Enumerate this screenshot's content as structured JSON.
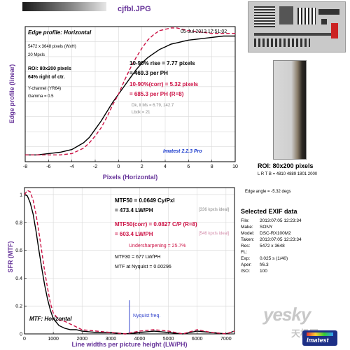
{
  "header": {
    "filename": "cjfbl.JPG"
  },
  "edge_info": {
    "title": "Edge profile: Horizontal",
    "date": "05-Jul-2013 17:51:02",
    "dims": "5472 x 3648 pixels (WxH)",
    "mpix": "20 Mpxls",
    "roi": "ROI: 80x200 pixels",
    "roi_pos": "64% right of ctr.",
    "channel": "Y-channel (YR64)",
    "gamma": "Gamma = 0.5",
    "rise_1": "10-90% rise = 7.77 pixels",
    "rise_2": "= 469.3 per PH",
    "corr_1": "10-90%(corr) = 5.32 pixels",
    "corr_2": "= 685.3 per PH  (R=8)",
    "dk": "Dk, lt Ms = 6.79, 142.7",
    "lbdk": "Lbdk = 21",
    "brand": "Imatest 2.2.3 Pro"
  },
  "mtf_info": {
    "mtf50_1": "MTF50 = 0.0649 Cy/Pxl",
    "mtf50_2": "= 473.4 LW/PH",
    "ideal_1": "[336 kpxls ideal]",
    "mtf50c_1": "MTF50(corr) = 0.0827  C/P  (R=8)",
    "mtf50c_2": "= 603.4 LW/PH",
    "ideal_2": "[546 kpxls ideal]",
    "under": "Undersharpening = 25.7%",
    "mtf30": "MTF30 = 677 LW/PH",
    "nyq": "MTF at Nyquist = 0.00296",
    "nyq_label": "Nyquist freq.",
    "title": "MTF: Horizontal"
  },
  "roi_panel": {
    "label": "ROI: 80x200 pixels",
    "ltrb": "L R T B = 4810 4889  1801 2000",
    "edge_angle": "Edge angle = -5.32 degs"
  },
  "exif": {
    "title": "Selected EXIF data",
    "rows": [
      {
        "k": "File:",
        "v": "2013:07:05 12:23:34"
      },
      {
        "k": "Make:",
        "v": "SONY"
      },
      {
        "k": "Model:",
        "v": "DSC-RX100M2"
      },
      {
        "k": "Taken:",
        "v": "2013:07:05 12:23:34"
      },
      {
        "k": "Res:",
        "v": "5472 x 3648"
      },
      {
        "k": "FL:",
        "v": ""
      },
      {
        "k": "Exp:",
        "v": "0.025 s  (1/40)"
      },
      {
        "k": "Aper:",
        "v": "f/6.3"
      },
      {
        "k": "ISO:",
        "v": "100"
      }
    ]
  },
  "watermark": {
    "site": "yesky",
    "cn": "天极网",
    "logo": "Imatest"
  },
  "colors": {
    "measured": "#000000",
    "corrected": "#cc1144",
    "nyquist": "#3344cc",
    "title": "#663399"
  },
  "chart_data": [
    {
      "type": "line",
      "title": "Edge profile: Horizontal",
      "xlabel": "Pixels (Horizontal)",
      "ylabel": "Edge profile (linear)",
      "xlim": [
        -8,
        10
      ],
      "ylim": [
        0,
        1
      ],
      "x_ticks": [
        -8,
        -6,
        -4,
        -2,
        0,
        2,
        4,
        6,
        8,
        10
      ],
      "grid": true,
      "series": [
        {
          "style": "solid",
          "color": "#000000",
          "x": [
            -8,
            -7,
            -6,
            -5,
            -4,
            -3,
            -2.5,
            -2,
            -1.5,
            -1,
            -0.5,
            0,
            0.5,
            1,
            1.5,
            2,
            2.5,
            3,
            3.5,
            4,
            4.5,
            5,
            5.5,
            6,
            7,
            8,
            9,
            10
          ],
          "y": [
            0.05,
            0.05,
            0.06,
            0.07,
            0.09,
            0.14,
            0.18,
            0.24,
            0.3,
            0.37,
            0.44,
            0.5,
            0.56,
            0.62,
            0.68,
            0.73,
            0.77,
            0.8,
            0.83,
            0.85,
            0.87,
            0.88,
            0.89,
            0.9,
            0.91,
            0.92,
            0.93,
            0.93
          ]
        },
        {
          "style": "dashed",
          "color": "#cc1144",
          "x": [
            -8,
            -7,
            -6,
            -5,
            -4,
            -3.5,
            -3,
            -2.5,
            -2,
            -1.5,
            -1,
            -0.5,
            0,
            0.5,
            1,
            1.5,
            2,
            2.5,
            3,
            3.5,
            4,
            4.5,
            5,
            5.5,
            6,
            7,
            8,
            9,
            10
          ],
          "y": [
            0.05,
            0.05,
            0.05,
            0.05,
            0.06,
            0.08,
            0.1,
            0.14,
            0.19,
            0.25,
            0.33,
            0.42,
            0.5,
            0.6,
            0.69,
            0.77,
            0.84,
            0.9,
            0.94,
            0.97,
            0.98,
            0.99,
            0.99,
            0.98,
            0.97,
            0.96,
            0.95,
            0.95,
            0.95
          ]
        }
      ]
    },
    {
      "type": "line",
      "title": "MTF: Horizontal",
      "xlabel": "Line widths per picture height (LW/PH)",
      "ylabel": "SFR (MTF)",
      "xlim": [
        0,
        7296
      ],
      "ylim": [
        0,
        1.05
      ],
      "x_ticks": [
        0,
        1000,
        2000,
        3000,
        4000,
        5000,
        6000,
        7000
      ],
      "y_ticks": [
        0,
        0.2,
        0.4,
        0.6,
        0.8,
        1
      ],
      "nyquist_x": 3648,
      "grid": true,
      "series": [
        {
          "style": "solid",
          "color": "#000000",
          "x": [
            0,
            100,
            200,
            300,
            400,
            500,
            600,
            700,
            800,
            900,
            1000,
            1200,
            1400,
            1600,
            1800,
            2000,
            2500,
            3000,
            3500,
            4000,
            4500,
            5000,
            5500,
            6000,
            6500,
            7000,
            7296
          ],
          "y": [
            1,
            0.99,
            0.94,
            0.86,
            0.74,
            0.6,
            0.47,
            0.35,
            0.25,
            0.17,
            0.11,
            0.06,
            0.04,
            0.03,
            0.03,
            0.02,
            0.01,
            0.01,
            0.0,
            0.01,
            0.02,
            0.01,
            0.0,
            0.02,
            0.01,
            0.0,
            0.02
          ]
        },
        {
          "style": "dashed",
          "color": "#cc1144",
          "x": [
            0,
            100,
            200,
            300,
            400,
            500,
            600,
            700,
            800,
            900,
            1000,
            1200,
            1400,
            1600,
            1800,
            2000,
            2500,
            3000,
            3500,
            4000,
            4500,
            5000,
            5500,
            6000,
            6500,
            7000,
            7296
          ],
          "y": [
            1.0,
            1.03,
            1.02,
            0.96,
            0.86,
            0.73,
            0.59,
            0.45,
            0.33,
            0.22,
            0.15,
            0.1,
            0.09,
            0.07,
            0.05,
            0.03,
            0.02,
            0.01,
            0.0,
            0.02,
            0.03,
            0.02,
            0.0,
            0.03,
            0.01,
            0.0,
            0.02
          ]
        }
      ]
    }
  ]
}
